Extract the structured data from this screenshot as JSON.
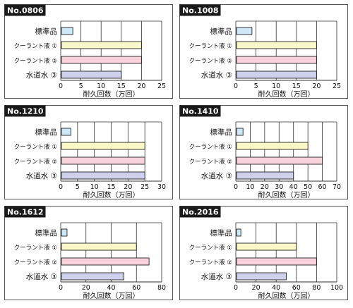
{
  "colors": {
    "panel_border": "#555555",
    "title_bg": "#1a1a1a",
    "title_text": "#ffffff",
    "grid": "#333333",
    "bar_stroke": "#222222",
    "bars": [
      "#cfe8f7",
      "#fbf8c8",
      "#f8d2dd",
      "#cfd0ec"
    ]
  },
  "chart_data": [
    {
      "type": "bar",
      "orientation": "horizontal",
      "title": "No.0806",
      "categories": [
        "標準品",
        "クーラント液 ①",
        "クーラント液 ②",
        "水道水 ③"
      ],
      "values": [
        3,
        20,
        20,
        15
      ],
      "xlabel": "耐久回数（万回）",
      "xlim": [
        0,
        25
      ],
      "xticks": [
        0,
        5,
        10,
        15,
        20,
        25
      ],
      "grid": true
    },
    {
      "type": "bar",
      "orientation": "horizontal",
      "title": "No.1008",
      "categories": [
        "標準品",
        "クーラント液 ①",
        "クーラント液 ②",
        "水道水 ③"
      ],
      "values": [
        4,
        20,
        20,
        20
      ],
      "xlabel": "耐久回数（万回）",
      "xlim": [
        0,
        25
      ],
      "xticks": [
        0,
        5,
        10,
        15,
        20,
        25
      ],
      "grid": true
    },
    {
      "type": "bar",
      "orientation": "horizontal",
      "title": "No.1210",
      "categories": [
        "標準品",
        "クーラント液 ①",
        "クーラント液 ②",
        "水道水 ③"
      ],
      "values": [
        3,
        25,
        25,
        25
      ],
      "xlabel": "耐久回数（万回）",
      "xlim": [
        0,
        30
      ],
      "xticks": [
        0,
        5,
        10,
        15,
        20,
        25,
        30
      ],
      "grid": true
    },
    {
      "type": "bar",
      "orientation": "horizontal",
      "title": "No.1410",
      "categories": [
        "標準品",
        "クーラント液 ①",
        "クーラント液 ②",
        "水道水 ③"
      ],
      "values": [
        5,
        50,
        60,
        40
      ],
      "xlabel": "耐久回数（万回）",
      "xlim": [
        0,
        70
      ],
      "xticks": [
        0,
        10,
        20,
        30,
        40,
        50,
        60,
        70
      ],
      "grid": true
    },
    {
      "type": "bar",
      "orientation": "horizontal",
      "title": "No.1612",
      "categories": [
        "標準品",
        "クーラント液 ①",
        "クーラント液 ②",
        "水道水 ③"
      ],
      "values": [
        5,
        60,
        70,
        50
      ],
      "xlabel": "耐久回数（万回）",
      "xlim": [
        0,
        80
      ],
      "xticks": [
        0,
        20,
        40,
        60,
        80
      ],
      "grid": true
    },
    {
      "type": "bar",
      "orientation": "horizontal",
      "title": "No.2016",
      "categories": [
        "標準品",
        "クーラント液 ①",
        "クーラント液 ②",
        "水道水 ③"
      ],
      "values": [
        5,
        60,
        80,
        50
      ],
      "xlabel": "耐久回数（万回）",
      "xlim": [
        0,
        100
      ],
      "xticks": [
        0,
        20,
        40,
        60,
        80,
        100
      ],
      "grid": true
    }
  ]
}
